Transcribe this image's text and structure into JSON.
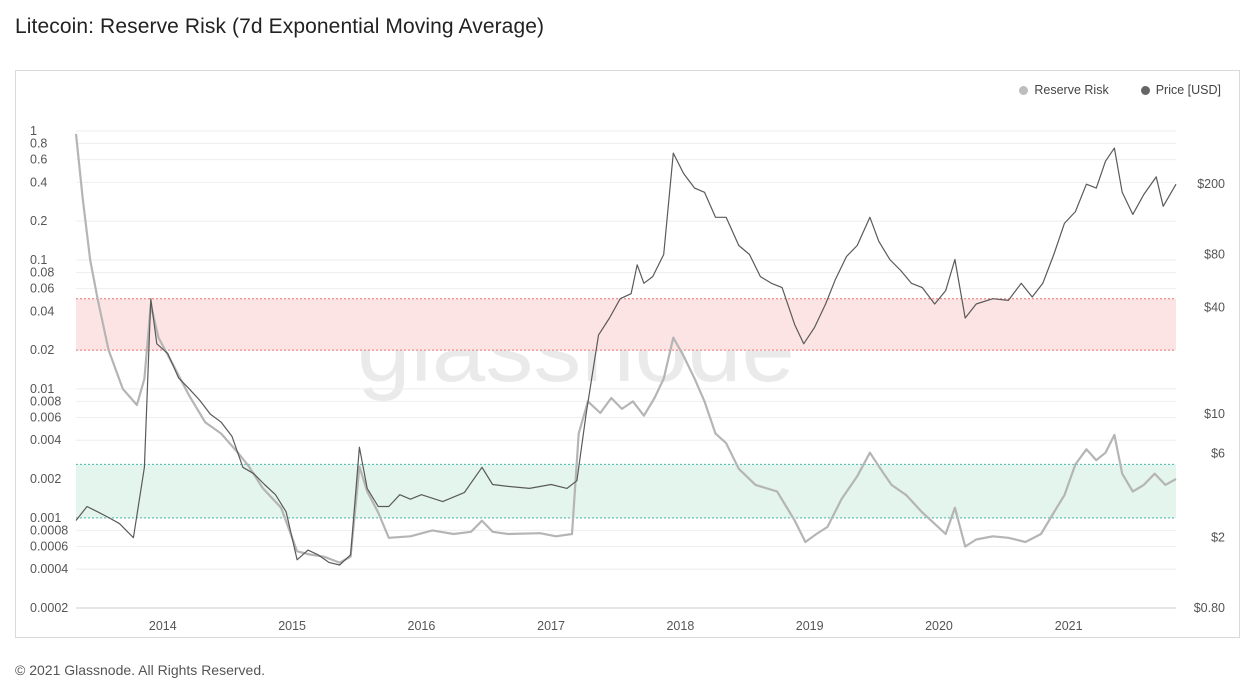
{
  "title": "Litecoin: Reserve Risk (7d Exponential Moving Average)",
  "footer": "© 2021 Glassnode. All Rights Reserved.",
  "watermark": "glassnode",
  "legend": [
    {
      "label": "Reserve Risk",
      "color": "#bdbdbd"
    },
    {
      "label": "Price [USD]",
      "color": "#666666"
    }
  ],
  "colors": {
    "reserve_risk": "#b5b5b5",
    "price": "#5a5a5a",
    "red_band": "#fde4e4",
    "red_band_line": "#e57373",
    "green_band": "#e3f5ec",
    "green_band_line": "#4db6ac",
    "grid": "#eeeeee"
  },
  "chart_data": {
    "type": "line",
    "title": "Litecoin: Reserve Risk (7d Exponential Moving Average)",
    "x_range": [
      "2013-05-01",
      "2021-10-31"
    ],
    "x_ticks": [
      "2014",
      "2015",
      "2016",
      "2017",
      "2018",
      "2019",
      "2020",
      "2021"
    ],
    "y_left": {
      "scale": "log",
      "range": [
        0.0002,
        1
      ],
      "ticks": [
        1,
        0.8,
        0.6,
        0.4,
        0.2,
        0.1,
        0.08,
        0.06,
        0.04,
        0.02,
        0.01,
        0.008,
        0.006,
        0.004,
        0.002,
        0.001,
        0.0008,
        0.0006,
        0.0004,
        0.0002
      ],
      "tick_labels": [
        "1",
        "0.8",
        "0.6",
        "0.4",
        "0.2",
        "0.1",
        "0.08",
        "0.06",
        "0.04",
        "0.02",
        "0.01",
        "0.008",
        "0.006",
        "0.004",
        "0.002",
        "0.001",
        "0.0008",
        "0.0006",
        "0.0004",
        "0.0002"
      ]
    },
    "y_right": {
      "scale": "log",
      "range": [
        0.8,
        400
      ],
      "ticks": [
        200,
        80,
        40,
        10,
        6,
        2,
        0.8
      ],
      "tick_labels": [
        "$200",
        "$80",
        "$40",
        "$10",
        "$6",
        "$2",
        "$0.80"
      ]
    },
    "bands": [
      {
        "name": "high",
        "axis": "left",
        "from": 0.02,
        "to": 0.05
      },
      {
        "name": "low",
        "axis": "left",
        "from": 0.001,
        "to": 0.0026
      }
    ],
    "series": [
      {
        "name": "Reserve Risk",
        "axis": "left",
        "points": [
          [
            "2013-05-01",
            0.95
          ],
          [
            "2013-05-20",
            0.3
          ],
          [
            "2013-06-10",
            0.1
          ],
          [
            "2013-07-01",
            0.05
          ],
          [
            "2013-08-01",
            0.02
          ],
          [
            "2013-09-10",
            0.01
          ],
          [
            "2013-10-20",
            0.0075
          ],
          [
            "2013-11-10",
            0.012
          ],
          [
            "2013-11-28",
            0.045
          ],
          [
            "2013-12-20",
            0.025
          ],
          [
            "2014-02-01",
            0.015
          ],
          [
            "2014-03-15",
            0.009
          ],
          [
            "2014-05-01",
            0.0055
          ],
          [
            "2014-06-15",
            0.0045
          ],
          [
            "2014-08-01",
            0.0032
          ],
          [
            "2014-09-01",
            0.0025
          ],
          [
            "2014-10-10",
            0.0017
          ],
          [
            "2014-12-01",
            0.0012
          ],
          [
            "2015-01-15",
            0.00055
          ],
          [
            "2015-02-20",
            0.00052
          ],
          [
            "2015-04-01",
            0.0005
          ],
          [
            "2015-05-15",
            0.00045
          ],
          [
            "2015-06-15",
            0.0005
          ],
          [
            "2015-07-10",
            0.0025
          ],
          [
            "2015-08-01",
            0.0016
          ],
          [
            "2015-09-01",
            0.0011
          ],
          [
            "2015-10-01",
            0.0007
          ],
          [
            "2015-12-01",
            0.00072
          ],
          [
            "2016-02-01",
            0.0008
          ],
          [
            "2016-04-01",
            0.00075
          ],
          [
            "2016-05-20",
            0.00078
          ],
          [
            "2016-06-20",
            0.00095
          ],
          [
            "2016-07-20",
            0.00078
          ],
          [
            "2016-09-01",
            0.00075
          ],
          [
            "2016-12-01",
            0.00076
          ],
          [
            "2017-01-15",
            0.00072
          ],
          [
            "2017-03-01",
            0.00075
          ],
          [
            "2017-03-20",
            0.0045
          ],
          [
            "2017-04-15",
            0.008
          ],
          [
            "2017-05-20",
            0.0065
          ],
          [
            "2017-06-20",
            0.0085
          ],
          [
            "2017-07-20",
            0.007
          ],
          [
            "2017-08-20",
            0.008
          ],
          [
            "2017-09-20",
            0.0062
          ],
          [
            "2017-10-20",
            0.0085
          ],
          [
            "2017-11-15",
            0.012
          ],
          [
            "2017-12-12",
            0.025
          ],
          [
            "2018-01-10",
            0.018
          ],
          [
            "2018-02-10",
            0.012
          ],
          [
            "2018-03-10",
            0.008
          ],
          [
            "2018-04-10",
            0.0045
          ],
          [
            "2018-05-10",
            0.0038
          ],
          [
            "2018-06-15",
            0.0024
          ],
          [
            "2018-08-01",
            0.0018
          ],
          [
            "2018-10-01",
            0.0016
          ],
          [
            "2018-11-20",
            0.00095
          ],
          [
            "2018-12-20",
            0.00065
          ],
          [
            "2019-01-20",
            0.00075
          ],
          [
            "2019-02-20",
            0.00085
          ],
          [
            "2019-04-01",
            0.0014
          ],
          [
            "2019-05-15",
            0.0021
          ],
          [
            "2019-06-20",
            0.0032
          ],
          [
            "2019-07-20",
            0.0024
          ],
          [
            "2019-08-20",
            0.0018
          ],
          [
            "2019-10-01",
            0.0015
          ],
          [
            "2019-11-15",
            0.0011
          ],
          [
            "2019-12-20",
            0.0009
          ],
          [
            "2020-01-20",
            0.00075
          ],
          [
            "2020-02-15",
            0.0012
          ],
          [
            "2020-03-15",
            0.0006
          ],
          [
            "2020-04-15",
            0.00068
          ],
          [
            "2020-06-01",
            0.00072
          ],
          [
            "2020-07-15",
            0.0007
          ],
          [
            "2020-09-01",
            0.00065
          ],
          [
            "2020-10-15",
            0.00075
          ],
          [
            "2020-11-20",
            0.0011
          ],
          [
            "2020-12-20",
            0.0015
          ],
          [
            "2021-01-20",
            0.0026
          ],
          [
            "2021-02-20",
            0.0034
          ],
          [
            "2021-03-20",
            0.0028
          ],
          [
            "2021-04-15",
            0.0032
          ],
          [
            "2021-05-10",
            0.0044
          ],
          [
            "2021-06-01",
            0.0022
          ],
          [
            "2021-07-01",
            0.0016
          ],
          [
            "2021-08-01",
            0.0018
          ],
          [
            "2021-09-01",
            0.0022
          ],
          [
            "2021-10-01",
            0.0018
          ],
          [
            "2021-10-31",
            0.002
          ]
        ]
      },
      {
        "name": "Price [USD]",
        "axis": "right",
        "points": [
          [
            "2013-05-01",
            2.5
          ],
          [
            "2013-06-01",
            3.0
          ],
          [
            "2013-07-01",
            2.8
          ],
          [
            "2013-08-01",
            2.6
          ],
          [
            "2013-09-01",
            2.4
          ],
          [
            "2013-10-10",
            2.0
          ],
          [
            "2013-11-10",
            5.0
          ],
          [
            "2013-11-28",
            45
          ],
          [
            "2013-12-15",
            25
          ],
          [
            "2014-01-15",
            22
          ],
          [
            "2014-02-15",
            16
          ],
          [
            "2014-03-15",
            14
          ],
          [
            "2014-04-15",
            12
          ],
          [
            "2014-05-15",
            10
          ],
          [
            "2014-06-15",
            9
          ],
          [
            "2014-07-15",
            7.5
          ],
          [
            "2014-08-15",
            5.0
          ],
          [
            "2014-09-15",
            4.6
          ],
          [
            "2014-10-15",
            4.0
          ],
          [
            "2014-11-15",
            3.5
          ],
          [
            "2014-12-15",
            2.8
          ],
          [
            "2015-01-15",
            1.5
          ],
          [
            "2015-02-15",
            1.7
          ],
          [
            "2015-03-15",
            1.6
          ],
          [
            "2015-04-15",
            1.45
          ],
          [
            "2015-05-15",
            1.4
          ],
          [
            "2015-06-15",
            1.6
          ],
          [
            "2015-07-10",
            6.5
          ],
          [
            "2015-08-01",
            3.8
          ],
          [
            "2015-09-01",
            3.0
          ],
          [
            "2015-10-01",
            3.0
          ],
          [
            "2015-11-01",
            3.5
          ],
          [
            "2015-12-01",
            3.3
          ],
          [
            "2016-01-01",
            3.5
          ],
          [
            "2016-03-01",
            3.2
          ],
          [
            "2016-05-01",
            3.6
          ],
          [
            "2016-06-20",
            5.0
          ],
          [
            "2016-07-20",
            4.0
          ],
          [
            "2016-09-01",
            3.9
          ],
          [
            "2016-11-01",
            3.8
          ],
          [
            "2017-01-01",
            4.0
          ],
          [
            "2017-02-15",
            3.8
          ],
          [
            "2017-03-15",
            4.2
          ],
          [
            "2017-04-10",
            10
          ],
          [
            "2017-05-15",
            28
          ],
          [
            "2017-06-15",
            35
          ],
          [
            "2017-07-15",
            45
          ],
          [
            "2017-08-15",
            48
          ],
          [
            "2017-09-01",
            70
          ],
          [
            "2017-09-20",
            55
          ],
          [
            "2017-10-15",
            60
          ],
          [
            "2017-11-15",
            80
          ],
          [
            "2017-12-12",
            300
          ],
          [
            "2018-01-10",
            230
          ],
          [
            "2018-02-10",
            190
          ],
          [
            "2018-03-10",
            180
          ],
          [
            "2018-04-10",
            130
          ],
          [
            "2018-05-10",
            130
          ],
          [
            "2018-06-15",
            90
          ],
          [
            "2018-07-15",
            80
          ],
          [
            "2018-08-15",
            60
          ],
          [
            "2018-09-15",
            55
          ],
          [
            "2018-10-15",
            52
          ],
          [
            "2018-11-20",
            32
          ],
          [
            "2018-12-15",
            25
          ],
          [
            "2019-01-15",
            31
          ],
          [
            "2019-02-15",
            42
          ],
          [
            "2019-03-15",
            58
          ],
          [
            "2019-04-15",
            78
          ],
          [
            "2019-05-15",
            90
          ],
          [
            "2019-06-20",
            130
          ],
          [
            "2019-07-15",
            95
          ],
          [
            "2019-08-15",
            75
          ],
          [
            "2019-09-15",
            65
          ],
          [
            "2019-10-15",
            55
          ],
          [
            "2019-11-15",
            52
          ],
          [
            "2019-12-20",
            42
          ],
          [
            "2020-01-20",
            50
          ],
          [
            "2020-02-15",
            75
          ],
          [
            "2020-03-15",
            35
          ],
          [
            "2020-04-15",
            42
          ],
          [
            "2020-06-01",
            45
          ],
          [
            "2020-07-15",
            44
          ],
          [
            "2020-08-20",
            55
          ],
          [
            "2020-09-20",
            46
          ],
          [
            "2020-10-20",
            55
          ],
          [
            "2020-11-20",
            80
          ],
          [
            "2020-12-20",
            120
          ],
          [
            "2021-01-20",
            140
          ],
          [
            "2021-02-20",
            200
          ],
          [
            "2021-03-20",
            190
          ],
          [
            "2021-04-15",
            270
          ],
          [
            "2021-05-10",
            320
          ],
          [
            "2021-06-01",
            180
          ],
          [
            "2021-07-01",
            135
          ],
          [
            "2021-08-01",
            175
          ],
          [
            "2021-09-05",
            220
          ],
          [
            "2021-09-25",
            150
          ],
          [
            "2021-10-31",
            200
          ]
        ]
      }
    ]
  }
}
